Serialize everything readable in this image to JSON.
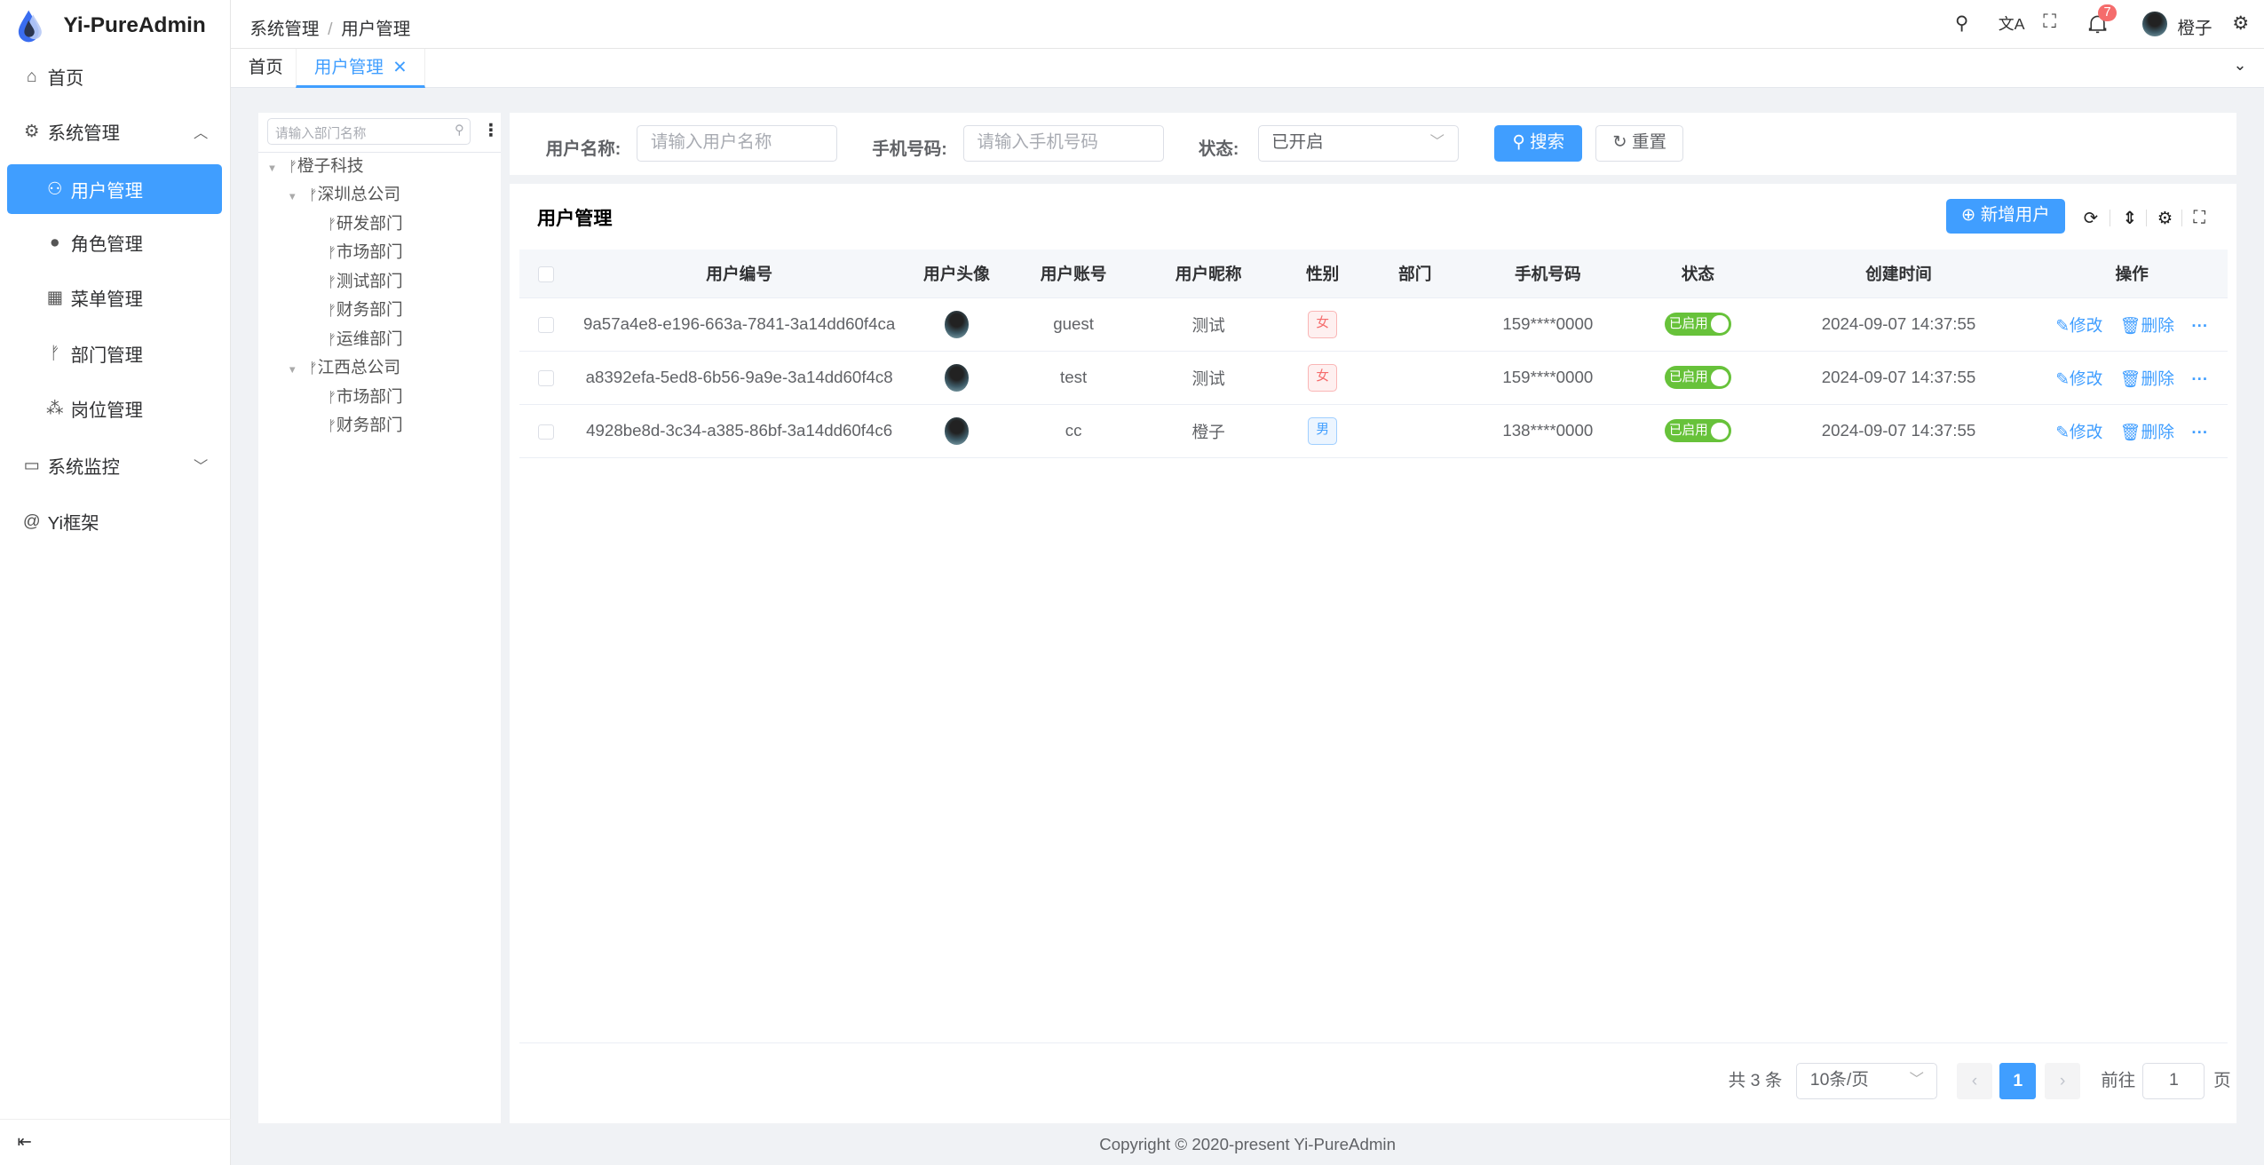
{
  "app": {
    "title": "Yi-PureAdmin",
    "footer": "Copyright © 2020-present Yi-PureAdmin"
  },
  "sidebar": {
    "items": [
      {
        "label": "首页",
        "icon": "home-icon"
      },
      {
        "label": "系统管理",
        "icon": "gear-icon",
        "expanded": true
      },
      {
        "label": "用户管理",
        "icon": "user-lock-icon",
        "active": true
      },
      {
        "label": "角色管理",
        "icon": "user-role-icon"
      },
      {
        "label": "菜单管理",
        "icon": "grid-icon"
      },
      {
        "label": "部门管理",
        "icon": "branch-icon"
      },
      {
        "label": "岗位管理",
        "icon": "network-icon"
      },
      {
        "label": "系统监控",
        "icon": "monitor-icon",
        "expanded": false
      },
      {
        "label": "Yi框架",
        "icon": "at-icon"
      }
    ]
  },
  "header": {
    "breadcrumb": [
      "系统管理",
      "用户管理"
    ],
    "notification_count": "7",
    "user_name": "橙子"
  },
  "tabs": [
    {
      "label": "首页"
    },
    {
      "label": "用户管理",
      "active": true
    }
  ],
  "tree": {
    "search_placeholder": "请输入部门名称",
    "nodes": [
      {
        "label": "橙子科技",
        "level": 0,
        "expandable": true
      },
      {
        "label": "深圳总公司",
        "level": 1,
        "expandable": true
      },
      {
        "label": "研发部门",
        "level": 2
      },
      {
        "label": "市场部门",
        "level": 2
      },
      {
        "label": "测试部门",
        "level": 2
      },
      {
        "label": "财务部门",
        "level": 2
      },
      {
        "label": "运维部门",
        "level": 2
      },
      {
        "label": "江西总公司",
        "level": 1,
        "expandable": true
      },
      {
        "label": "市场部门",
        "level": 2
      },
      {
        "label": "财务部门",
        "level": 2
      }
    ]
  },
  "search": {
    "username_label": "用户名称:",
    "username_placeholder": "请输入用户名称",
    "phone_label": "手机号码:",
    "phone_placeholder": "请输入手机号码",
    "status_label": "状态:",
    "status_value": "已开启",
    "search_btn": "搜索",
    "reset_btn": "重置"
  },
  "table": {
    "title": "用户管理",
    "add_btn": "新增用户",
    "columns": [
      "用户编号",
      "用户头像",
      "用户账号",
      "用户昵称",
      "性别",
      "部门",
      "手机号码",
      "状态",
      "创建时间",
      "操作"
    ],
    "rows": [
      {
        "id": "9a57a4e8-e196-663a-7841-3a14dd60f4ca",
        "account": "guest",
        "nickname": "测试",
        "gender": "女",
        "dept": "",
        "phone": "159****0000",
        "status": "已启用",
        "created": "2024-09-07 14:37:55"
      },
      {
        "id": "a8392efa-5ed8-6b56-9a9e-3a14dd60f4c8",
        "account": "test",
        "nickname": "测试",
        "gender": "女",
        "dept": "",
        "phone": "159****0000",
        "status": "已启用",
        "created": "2024-09-07 14:37:55"
      },
      {
        "id": "4928be8d-3c34-a385-86bf-3a14dd60f4c6",
        "account": "cc",
        "nickname": "橙子",
        "gender": "男",
        "dept": "",
        "phone": "138****0000",
        "status": "已启用",
        "created": "2024-09-07 14:37:55"
      }
    ],
    "edit": "修改",
    "delete": "删除"
  },
  "pagination": {
    "total": "共 3 条",
    "page_size": "10条/页",
    "current": "1",
    "goto_label": "前往",
    "goto_value": "1",
    "page_suffix": "页"
  },
  "colors": {
    "primary": "#409eff",
    "success": "#67c23a",
    "danger": "#f56c6c"
  }
}
